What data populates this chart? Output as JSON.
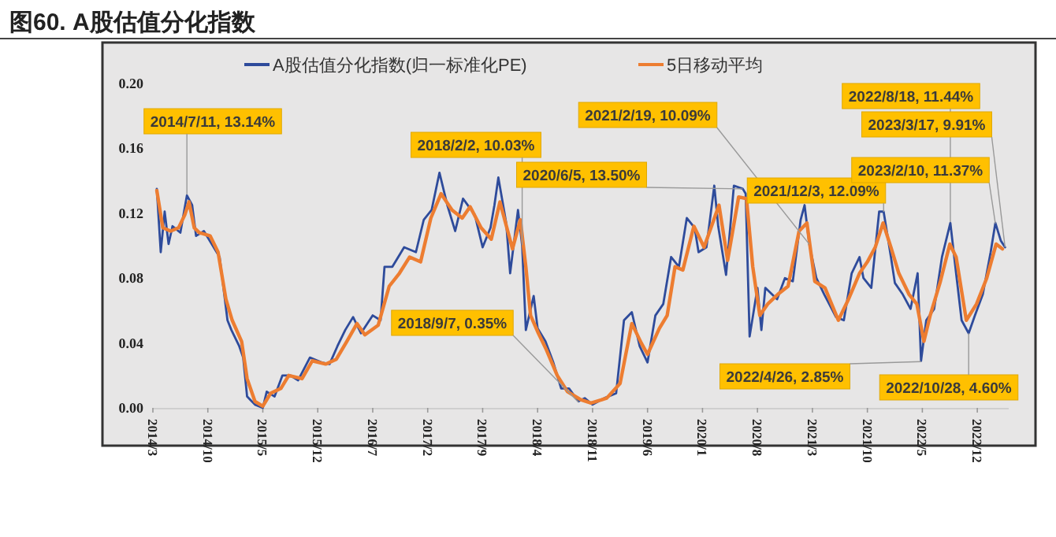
{
  "chart_data": {
    "type": "line",
    "title": "图60. A股估值分化指数",
    "legend": "top",
    "marker": "none",
    "line_style": "solid",
    "xlim": [
      "2014-03-01",
      "2023-04-01"
    ],
    "xticks": [
      {
        "value": "2014-03-01",
        "label": "2014/3"
      },
      {
        "value": "2014-10-01",
        "label": "2014/10"
      },
      {
        "value": "2015-05-01",
        "label": "2015/5"
      },
      {
        "value": "2015-12-01",
        "label": "2015/12"
      },
      {
        "value": "2016-07-01",
        "label": "2016/7"
      },
      {
        "value": "2017-02-01",
        "label": "2017/2"
      },
      {
        "value": "2017-09-01",
        "label": "2017/9"
      },
      {
        "value": "2018-04-01",
        "label": "2018/4"
      },
      {
        "value": "2018-11-01",
        "label": "2018/11"
      },
      {
        "value": "2019-06-01",
        "label": "2019/6"
      },
      {
        "value": "2020-01-01",
        "label": "2020/1"
      },
      {
        "value": "2020-08-01",
        "label": "2020/8"
      },
      {
        "value": "2021-03-01",
        "label": "2021/3"
      },
      {
        "value": "2021-10-01",
        "label": "2021/10"
      },
      {
        "value": "2022-05-01",
        "label": "2022/5"
      },
      {
        "value": "2022-12-01",
        "label": "2022/12"
      }
    ],
    "ylim": [
      0,
      0.2
    ],
    "yticks": [
      {
        "value": 0,
        "label": "0.00"
      },
      {
        "value": 0.04,
        "label": "0.04"
      },
      {
        "value": 0.08,
        "label": "0.08"
      },
      {
        "value": 0.12,
        "label": "0.12"
      },
      {
        "value": 0.16,
        "label": "0.16"
      },
      {
        "value": 0.2,
        "label": "0.20"
      }
    ],
    "series": [
      {
        "name": "A股估值分化指数(归一标准化PE)",
        "color": "#2e4b9b",
        "x": [
          "2014-03-16",
          "2014-04-01",
          "2014-04-16",
          "2014-05-01",
          "2014-05-16",
          "2014-06-16",
          "2014-07-11",
          "2014-08-01",
          "2014-08-16",
          "2014-09-16",
          "2014-10-16",
          "2014-11-16",
          "2014-12-16",
          "2015-01-01",
          "2015-02-01",
          "2015-02-16",
          "2015-03-01",
          "2015-04-01",
          "2015-05-01",
          "2015-05-16",
          "2015-06-16",
          "2015-07-16",
          "2015-08-16",
          "2015-09-16",
          "2015-11-01",
          "2015-12-16",
          "2016-01-16",
          "2016-02-16",
          "2016-03-16",
          "2016-04-16",
          "2016-05-16",
          "2016-07-01",
          "2016-08-01",
          "2016-08-16",
          "2016-09-16",
          "2016-11-01",
          "2016-12-16",
          "2017-01-16",
          "2017-02-16",
          "2017-03-16",
          "2017-04-16",
          "2017-05-16",
          "2017-06-16",
          "2017-08-01",
          "2017-09-01",
          "2017-10-01",
          "2017-10-16",
          "2017-11-01",
          "2017-12-01",
          "2017-12-16",
          "2018-01-16",
          "2018-02-02",
          "2018-02-16",
          "2018-03-16",
          "2018-04-01",
          "2018-05-01",
          "2018-06-01",
          "2018-07-01",
          "2018-08-01",
          "2018-09-07",
          "2018-10-01",
          "2018-11-01",
          "2018-12-16",
          "2019-02-01",
          "2019-03-01",
          "2019-04-01",
          "2019-05-01",
          "2019-06-01",
          "2019-07-01",
          "2019-08-01",
          "2019-09-01",
          "2019-10-01",
          "2019-11-01",
          "2019-12-01",
          "2019-12-16",
          "2020-01-16",
          "2020-02-16",
          "2020-03-01",
          "2020-04-01",
          "2020-05-01",
          "2020-06-05",
          "2020-06-16",
          "2020-07-01",
          "2020-08-01",
          "2020-08-16",
          "2020-09-01",
          "2020-10-16",
          "2020-11-16",
          "2020-12-16",
          "2021-01-16",
          "2021-02-01",
          "2021-02-19",
          "2021-03-16",
          "2021-04-16",
          "2021-06-01",
          "2021-07-01",
          "2021-08-01",
          "2021-09-01",
          "2021-09-16",
          "2021-10-16",
          "2021-11-16",
          "2021-12-03",
          "2022-01-01",
          "2022-01-16",
          "2022-02-16",
          "2022-03-16",
          "2022-04-13",
          "2022-04-26",
          "2022-05-16",
          "2022-06-16",
          "2022-07-16",
          "2022-08-18",
          "2022-09-10",
          "2022-10-01",
          "2022-10-28",
          "2022-11-22",
          "2022-12-22",
          "2023-01-22",
          "2023-02-10",
          "2023-03-01",
          "2023-03-17"
        ],
        "values": [
          0.135,
          0.096,
          0.121,
          0.101,
          0.112,
          0.108,
          0.131,
          0.125,
          0.106,
          0.109,
          0.101,
          0.093,
          0.054,
          0.048,
          0.038,
          0.031,
          0.007,
          0.002,
          0.0,
          0.01,
          0.007,
          0.02,
          0.02,
          0.017,
          0.031,
          0.028,
          0.027,
          0.038,
          0.048,
          0.056,
          0.046,
          0.057,
          0.054,
          0.087,
          0.087,
          0.099,
          0.096,
          0.116,
          0.122,
          0.145,
          0.125,
          0.109,
          0.129,
          0.119,
          0.099,
          0.111,
          0.125,
          0.142,
          0.114,
          0.083,
          0.122,
          0.1,
          0.048,
          0.069,
          0.049,
          0.041,
          0.028,
          0.012,
          0.012,
          0.004,
          0.006,
          0.002,
          0.006,
          0.009,
          0.054,
          0.059,
          0.038,
          0.028,
          0.057,
          0.064,
          0.093,
          0.087,
          0.117,
          0.111,
          0.096,
          0.099,
          0.137,
          0.112,
          0.082,
          0.137,
          0.135,
          0.132,
          0.044,
          0.074,
          0.048,
          0.074,
          0.067,
          0.08,
          0.078,
          0.116,
          0.125,
          0.101,
          0.08,
          0.07,
          0.056,
          0.054,
          0.083,
          0.093,
          0.08,
          0.074,
          0.121,
          0.121,
          0.093,
          0.077,
          0.07,
          0.061,
          0.083,
          0.029,
          0.054,
          0.061,
          0.093,
          0.114,
          0.083,
          0.054,
          0.046,
          0.057,
          0.07,
          0.096,
          0.114,
          0.103,
          0.099
        ]
      },
      {
        "name": "5日移动平均",
        "color": "#ed7d31",
        "x": [
          "2014-03-16",
          "2014-04-09",
          "2014-05-09",
          "2014-06-09",
          "2014-07-03",
          "2014-07-19",
          "2014-08-09",
          "2014-08-29",
          "2014-10-10",
          "2014-11-10",
          "2014-12-10",
          "2015-01-04",
          "2015-02-10",
          "2015-03-01",
          "2015-04-01",
          "2015-05-01",
          "2015-06-01",
          "2015-07-10",
          "2015-08-10",
          "2015-10-01",
          "2015-11-10",
          "2016-01-01",
          "2016-02-12",
          "2016-03-22",
          "2016-05-01",
          "2016-06-01",
          "2016-07-22",
          "2016-09-04",
          "2016-10-13",
          "2016-11-22",
          "2017-01-04",
          "2017-02-13",
          "2017-03-22",
          "2017-05-04",
          "2017-06-13",
          "2017-07-13",
          "2017-08-25",
          "2017-10-04",
          "2017-11-07",
          "2017-12-25",
          "2018-01-25",
          "2018-02-16",
          "2018-03-04",
          "2018-04-04",
          "2018-05-04",
          "2018-06-16",
          "2018-07-25",
          "2018-09-16",
          "2018-10-25",
          "2018-12-25",
          "2019-02-16",
          "2019-04-01",
          "2019-05-07",
          "2019-06-01",
          "2019-07-16",
          "2019-08-16",
          "2019-09-16",
          "2019-10-16",
          "2019-11-28",
          "2020-01-07",
          "2020-03-04",
          "2020-04-07",
          "2020-05-19",
          "2020-06-19",
          "2020-07-13",
          "2020-08-10",
          "2020-09-10",
          "2020-10-19",
          "2020-11-28",
          "2021-01-10",
          "2021-02-10",
          "2021-03-10",
          "2021-04-19",
          "2021-06-10",
          "2021-07-19",
          "2021-09-01",
          "2021-10-01",
          "2021-11-01",
          "2021-12-01",
          "2022-01-01",
          "2022-02-01",
          "2022-03-10",
          "2022-04-10",
          "2022-05-07",
          "2022-06-01",
          "2022-07-10",
          "2022-08-16",
          "2022-09-10",
          "2022-10-19",
          "2022-11-28",
          "2023-01-07",
          "2023-02-13",
          "2023-03-07"
        ],
        "values": [
          0.134,
          0.111,
          0.109,
          0.111,
          0.119,
          0.127,
          0.111,
          0.108,
          0.106,
          0.096,
          0.067,
          0.054,
          0.041,
          0.018,
          0.004,
          0.001,
          0.009,
          0.012,
          0.02,
          0.018,
          0.029,
          0.027,
          0.03,
          0.041,
          0.052,
          0.045,
          0.051,
          0.075,
          0.083,
          0.093,
          0.09,
          0.117,
          0.132,
          0.122,
          0.117,
          0.124,
          0.111,
          0.104,
          0.127,
          0.098,
          0.116,
          0.087,
          0.057,
          0.046,
          0.036,
          0.02,
          0.01,
          0.005,
          0.003,
          0.006,
          0.015,
          0.052,
          0.04,
          0.033,
          0.049,
          0.057,
          0.087,
          0.085,
          0.112,
          0.099,
          0.125,
          0.091,
          0.13,
          0.129,
          0.087,
          0.057,
          0.064,
          0.07,
          0.075,
          0.109,
          0.114,
          0.078,
          0.074,
          0.054,
          0.067,
          0.083,
          0.09,
          0.099,
          0.114,
          0.099,
          0.083,
          0.07,
          0.064,
          0.041,
          0.057,
          0.078,
          0.101,
          0.093,
          0.054,
          0.064,
          0.08,
          0.101,
          0.098
        ]
      }
    ],
    "annotations": [
      {
        "text": "2014/7/11, 13.14%",
        "x": "2014-07-11",
        "y": 0.1314
      },
      {
        "text": "2018/2/2, 10.03%",
        "x": "2018-02-02",
        "y": 0.1003
      },
      {
        "text": "2018/9/7, 0.35%",
        "x": "2018-09-07",
        "y": 0.0035
      },
      {
        "text": "2020/6/5, 13.50%",
        "x": "2020-06-05",
        "y": 0.135
      },
      {
        "text": "2021/2/19, 10.09%",
        "x": "2021-02-19",
        "y": 0.1009
      },
      {
        "text": "2021/12/3, 12.09%",
        "x": "2021-12-03",
        "y": 0.1209
      },
      {
        "text": "2022/4/26, 2.85%",
        "x": "2022-04-26",
        "y": 0.0285
      },
      {
        "text": "2022/8/18, 11.44%",
        "x": "2022-08-18",
        "y": 0.1144
      },
      {
        "text": "2022/10/28, 4.60%",
        "x": "2022-10-28",
        "y": 0.046
      },
      {
        "text": "2023/2/10, 11.37%",
        "x": "2023-02-10",
        "y": 0.1137
      },
      {
        "text": "2023/3/17, 9.91%",
        "x": "2023-03-17",
        "y": 0.0991
      }
    ]
  }
}
